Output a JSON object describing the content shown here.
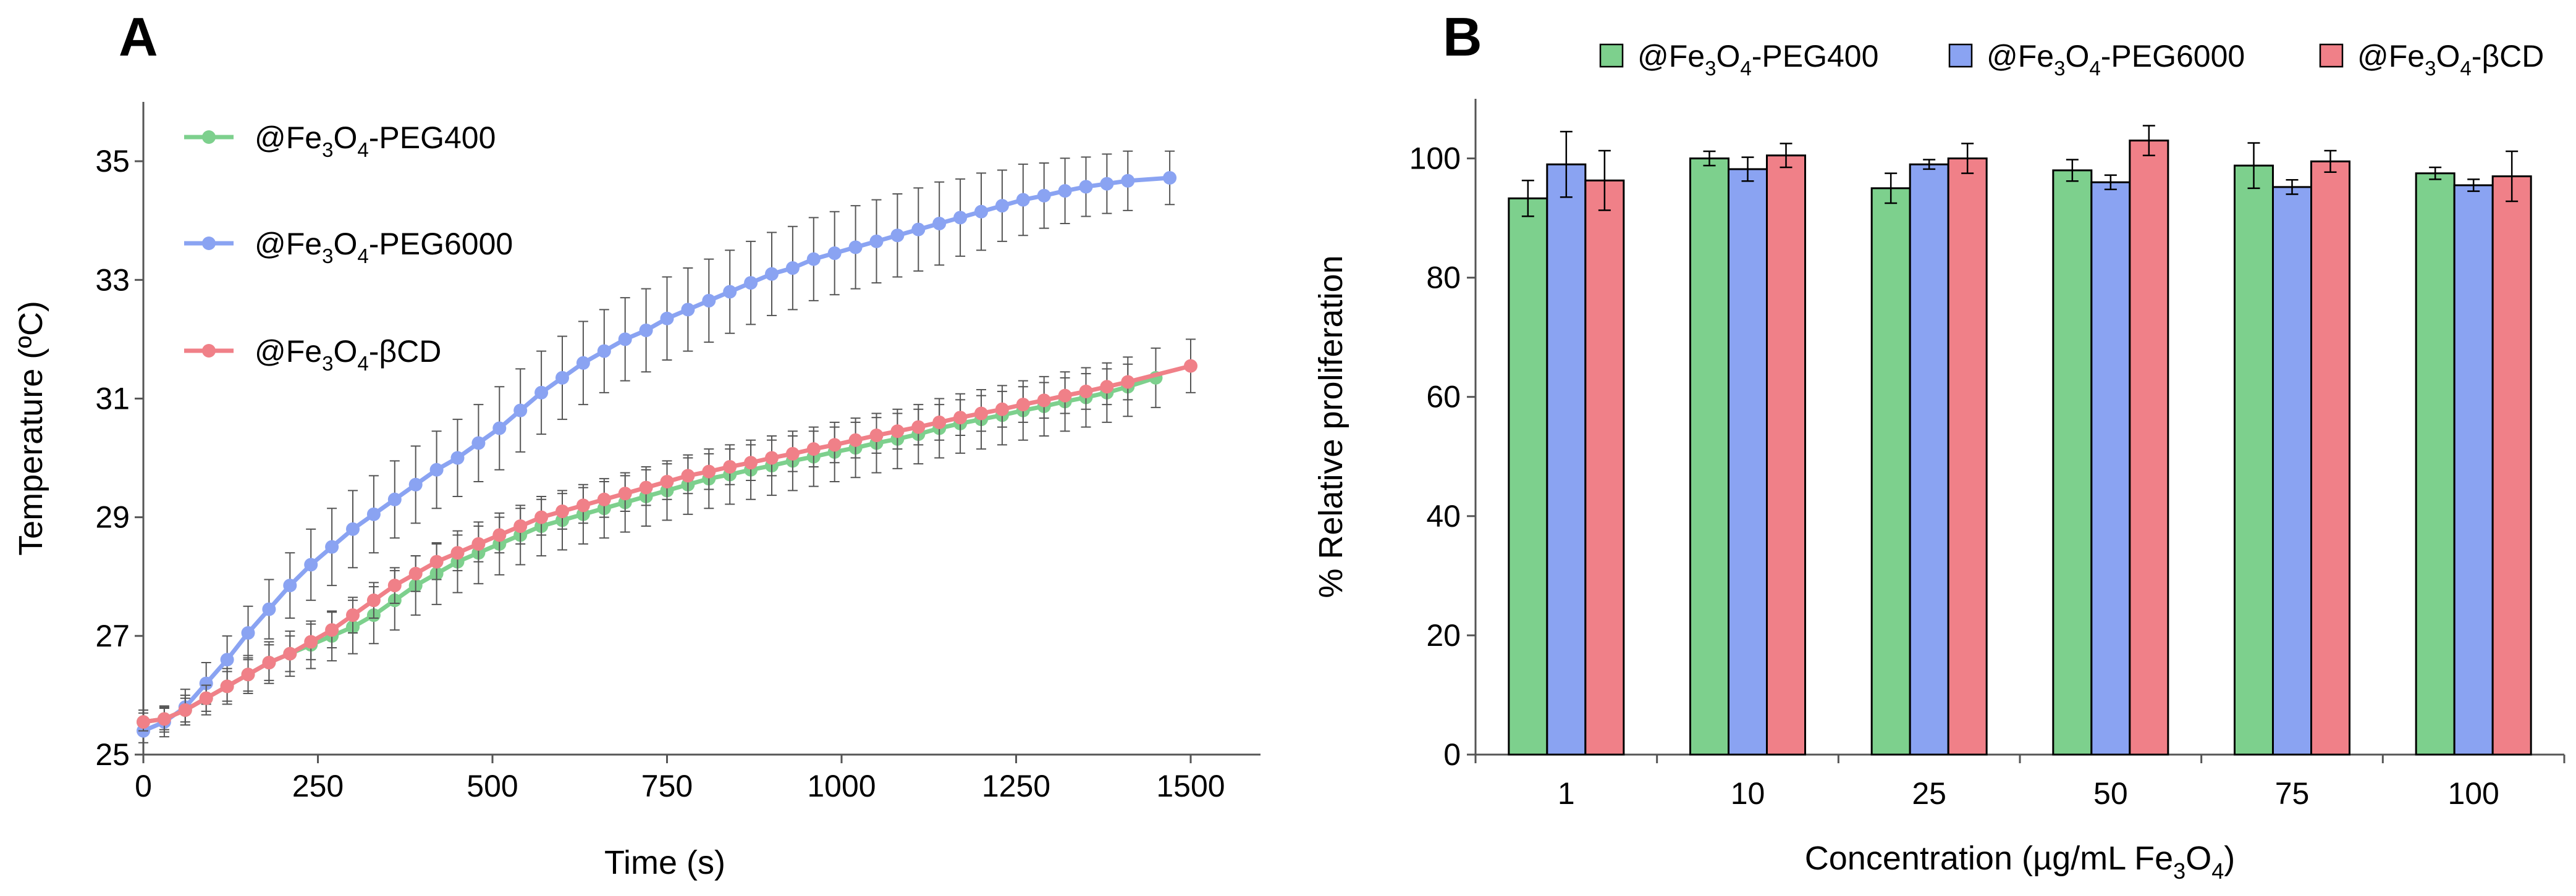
{
  "panels": [
    {
      "letter": "A",
      "chart_data": {
        "type": "line",
        "title": "",
        "xlabel": "Time (s)",
        "ylabel": "Temperature (ºC)",
        "xlim": [
          0,
          1600
        ],
        "ylim": [
          25,
          36
        ],
        "xticks": [
          0,
          250,
          500,
          750,
          1000,
          1250,
          1500
        ],
        "yticks": [
          25,
          27,
          29,
          31,
          33,
          35
        ],
        "legend_position": "top-left",
        "series": [
          {
            "name": "@Fe3O4-PEG400",
            "label_parts": [
              "@Fe",
              "3",
              "O",
              "4",
              "-PEG400"
            ],
            "color": "#7dd08d",
            "x": [
              0,
              30,
              60,
              90,
              120,
              150,
              180,
              210,
              240,
              270,
              300,
              330,
              360,
              390,
              420,
              450,
              480,
              510,
              540,
              570,
              600,
              630,
              660,
              690,
              720,
              750,
              780,
              810,
              840,
              870,
              900,
              930,
              960,
              990,
              1020,
              1050,
              1080,
              1110,
              1140,
              1170,
              1200,
              1230,
              1260,
              1290,
              1320,
              1350,
              1380,
              1410,
              1450
            ],
            "y": [
              25.55,
              25.6,
              25.75,
              25.95,
              26.15,
              26.35,
              26.55,
              26.7,
              26.85,
              27.0,
              27.15,
              27.35,
              27.6,
              27.85,
              28.05,
              28.25,
              28.4,
              28.55,
              28.7,
              28.85,
              28.95,
              29.05,
              29.15,
              29.25,
              29.35,
              29.45,
              29.55,
              29.65,
              29.72,
              29.8,
              29.87,
              29.95,
              30.02,
              30.1,
              30.17,
              30.25,
              30.32,
              30.4,
              30.5,
              30.58,
              30.65,
              30.72,
              30.8,
              30.87,
              30.95,
              31.02,
              31.1,
              31.2,
              31.35
            ],
            "err": [
              0.2,
              0.22,
              0.25,
              0.28,
              0.3,
              0.32,
              0.35,
              0.38,
              0.4,
              0.42,
              0.45,
              0.48,
              0.5,
              0.5,
              0.52,
              0.52,
              0.52,
              0.52,
              0.5,
              0.5,
              0.5,
              0.5,
              0.5,
              0.5,
              0.5,
              0.5,
              0.5,
              0.5,
              0.5,
              0.5,
              0.5,
              0.5,
              0.5,
              0.5,
              0.5,
              0.5,
              0.5,
              0.5,
              0.5,
              0.5,
              0.5,
              0.5,
              0.5,
              0.5,
              0.5,
              0.5,
              0.5,
              0.5,
              0.5
            ]
          },
          {
            "name": "@Fe3O4-PEG6000",
            "label_parts": [
              "@Fe",
              "3",
              "O",
              "4",
              "-PEG6000"
            ],
            "color": "#8aa3f2",
            "x": [
              0,
              30,
              60,
              90,
              120,
              150,
              180,
              210,
              240,
              270,
              300,
              330,
              360,
              390,
              420,
              450,
              480,
              510,
              540,
              570,
              600,
              630,
              660,
              690,
              720,
              750,
              780,
              810,
              840,
              870,
              900,
              930,
              960,
              990,
              1020,
              1050,
              1080,
              1110,
              1140,
              1170,
              1200,
              1230,
              1260,
              1290,
              1320,
              1350,
              1380,
              1410,
              1470
            ],
            "y": [
              25.4,
              25.55,
              25.8,
              26.2,
              26.6,
              27.05,
              27.45,
              27.85,
              28.2,
              28.5,
              28.8,
              29.05,
              29.3,
              29.55,
              29.8,
              30.0,
              30.25,
              30.5,
              30.8,
              31.1,
              31.35,
              31.6,
              31.8,
              32.0,
              32.15,
              32.35,
              32.5,
              32.65,
              32.8,
              32.95,
              33.1,
              33.2,
              33.35,
              33.45,
              33.55,
              33.65,
              33.75,
              33.85,
              33.95,
              34.05,
              34.15,
              34.25,
              34.35,
              34.42,
              34.5,
              34.57,
              34.62,
              34.67,
              34.72
            ],
            "err": [
              0.2,
              0.25,
              0.3,
              0.35,
              0.4,
              0.45,
              0.5,
              0.55,
              0.6,
              0.65,
              0.65,
              0.65,
              0.65,
              0.65,
              0.65,
              0.65,
              0.65,
              0.7,
              0.7,
              0.7,
              0.7,
              0.7,
              0.7,
              0.7,
              0.7,
              0.7,
              0.7,
              0.7,
              0.7,
              0.7,
              0.7,
              0.7,
              0.7,
              0.7,
              0.7,
              0.7,
              0.7,
              0.7,
              0.7,
              0.65,
              0.65,
              0.6,
              0.6,
              0.55,
              0.55,
              0.5,
              0.5,
              0.5,
              0.45
            ]
          },
          {
            "name": "@Fe3O4-βCD",
            "label_parts": [
              "@Fe",
              "3",
              "O",
              "4",
              "-βCD"
            ],
            "color": "#f08088",
            "x": [
              0,
              30,
              60,
              90,
              120,
              150,
              180,
              210,
              240,
              270,
              300,
              330,
              360,
              390,
              420,
              450,
              480,
              510,
              540,
              570,
              600,
              630,
              660,
              690,
              720,
              750,
              780,
              810,
              840,
              870,
              900,
              930,
              960,
              990,
              1020,
              1050,
              1080,
              1110,
              1140,
              1170,
              1200,
              1230,
              1260,
              1290,
              1320,
              1350,
              1380,
              1410,
              1500
            ],
            "y": [
              25.55,
              25.6,
              25.75,
              25.95,
              26.15,
              26.35,
              26.55,
              26.7,
              26.9,
              27.1,
              27.35,
              27.6,
              27.85,
              28.05,
              28.25,
              28.4,
              28.55,
              28.7,
              28.85,
              29.0,
              29.1,
              29.2,
              29.3,
              29.4,
              29.5,
              29.6,
              29.7,
              29.77,
              29.85,
              29.92,
              30.0,
              30.07,
              30.15,
              30.22,
              30.3,
              30.38,
              30.45,
              30.52,
              30.6,
              30.68,
              30.75,
              30.82,
              30.9,
              30.97,
              31.05,
              31.12,
              31.2,
              31.28,
              31.55
            ],
            "err": [
              0.15,
              0.18,
              0.2,
              0.22,
              0.25,
              0.28,
              0.3,
              0.3,
              0.3,
              0.3,
              0.3,
              0.3,
              0.3,
              0.3,
              0.3,
              0.3,
              0.3,
              0.3,
              0.3,
              0.3,
              0.3,
              0.3,
              0.3,
              0.3,
              0.3,
              0.3,
              0.3,
              0.3,
              0.3,
              0.3,
              0.3,
              0.3,
              0.3,
              0.3,
              0.3,
              0.3,
              0.3,
              0.3,
              0.3,
              0.3,
              0.3,
              0.3,
              0.3,
              0.3,
              0.3,
              0.3,
              0.3,
              0.3,
              0.45
            ]
          }
        ]
      }
    },
    {
      "letter": "B",
      "chart_data": {
        "type": "bar",
        "title": "",
        "xlabel_parts": [
          "Concentration (µg/mL Fe",
          "3",
          "O",
          "4",
          ")"
        ],
        "xlabel": "Concentration (µg/mL Fe3O4)",
        "ylabel": "% Relative proliferation",
        "ylim": [
          0,
          110
        ],
        "yticks": [
          0,
          20,
          40,
          60,
          80,
          100
        ],
        "legend_position": "top",
        "categories": [
          "1",
          "10",
          "25",
          "50",
          "75",
          "100"
        ],
        "series": [
          {
            "name": "@Fe3O4-PEG400",
            "label_parts": [
              "@Fe",
              "3",
              "O",
              "4",
              "-PEG400"
            ],
            "color": "#7dd08d",
            "values": [
              93.3,
              100.0,
              95.0,
              98.0,
              98.8,
              97.5
            ],
            "err": [
              3.0,
              1.2,
              2.5,
              1.8,
              3.8,
              1.0
            ]
          },
          {
            "name": "@Fe3O4-PEG6000",
            "label_parts": [
              "@Fe",
              "3",
              "O",
              "4",
              "-PEG6000"
            ],
            "color": "#8aa3f2",
            "values": [
              99.0,
              98.2,
              99.0,
              96.0,
              95.2,
              95.5
            ],
            "err": [
              5.5,
              2.0,
              0.8,
              1.2,
              1.2,
              1.0
            ]
          },
          {
            "name": "@Fe3O4-βCD",
            "label_parts": [
              "@Fe",
              "3",
              "O",
              "4",
              "-βCD"
            ],
            "color": "#f08088",
            "values": [
              96.3,
              100.5,
              100.0,
              103.0,
              99.5,
              97.0
            ],
            "err": [
              5.0,
              2.0,
              2.5,
              2.5,
              1.8,
              4.2
            ]
          }
        ]
      }
    }
  ]
}
